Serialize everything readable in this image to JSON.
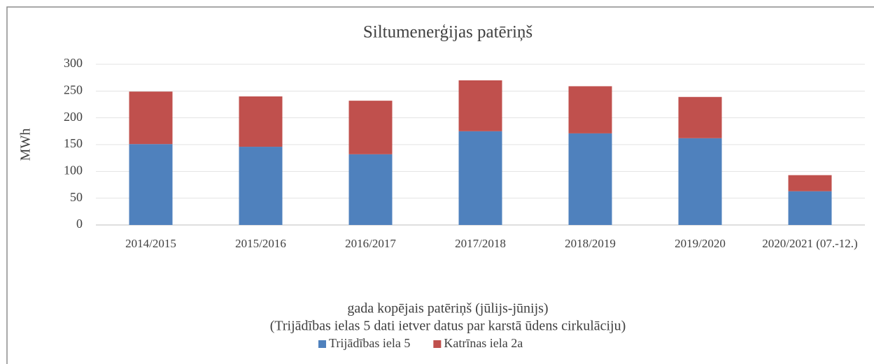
{
  "chart_data": {
    "type": "stacked_bar",
    "title": "Siltumenerģijas patēriņš",
    "ylabel": "MWh",
    "xlabel": [
      "gada kopējais patēriņš (jūlijs-jūnijs)",
      "(Trijādības ielas 5 dati ietver datus par karstā ūdens cirkulāciju)"
    ],
    "categories": [
      "2014/2015",
      "2015/2016",
      "2016/2017",
      "2017/2018",
      "2018/2019",
      "2019/2020",
      "2020/2021 (07.-12.)"
    ],
    "series": [
      {
        "name": "Trijādības iela 5",
        "color": "#4f81bd",
        "values": [
          151,
          146,
          132,
          175,
          171,
          162,
          63
        ]
      },
      {
        "name": "Katrīnas iela 2a",
        "color": "#c0504d",
        "values": [
          98,
          94,
          100,
          95,
          88,
          77,
          30
        ]
      }
    ],
    "ylim": [
      0,
      300
    ],
    "yticks": [
      0,
      50,
      100,
      150,
      200,
      250,
      300
    ],
    "grid": true,
    "legend": "bottom"
  }
}
